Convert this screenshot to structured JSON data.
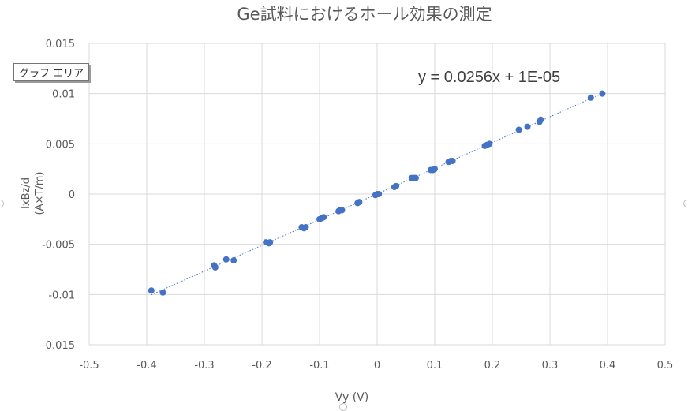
{
  "tooltip": "グラフ エリア",
  "chart_data": {
    "type": "scatter",
    "title": "Ge試料におけるホール効果の測定",
    "xlabel": "Vy (V)",
    "ylabel_lines": [
      "IxBz/d",
      "(A×T/m)"
    ],
    "xlim": [
      -0.5,
      0.5
    ],
    "ylim": [
      -0.015,
      0.015
    ],
    "x_ticks": [
      "-0.5",
      "-0.4",
      "-0.3",
      "-0.2",
      "-0.1",
      "0",
      "0.1",
      "0.2",
      "0.3",
      "0.4",
      "0.5"
    ],
    "y_ticks": [
      "0.015",
      "0.01",
      "0.005",
      "0",
      "-0.005",
      "-0.01",
      "-0.015"
    ],
    "grid": true,
    "marker_color": "#4472c4",
    "trendline": {
      "label": "y = 0.0256x + 1E-05",
      "slope": 0.0256,
      "intercept": 1e-05,
      "style": "dotted",
      "color": "#4472c4"
    },
    "points": [
      [
        -0.392,
        -0.0096
      ],
      [
        -0.372,
        -0.0098
      ],
      [
        -0.283,
        -0.0071
      ],
      [
        -0.281,
        -0.0073
      ],
      [
        -0.262,
        -0.0065
      ],
      [
        -0.249,
        -0.0066
      ],
      [
        -0.193,
        -0.0048
      ],
      [
        -0.188,
        -0.0049
      ],
      [
        -0.186,
        -0.0048
      ],
      [
        -0.131,
        -0.0033
      ],
      [
        -0.127,
        -0.0034
      ],
      [
        -0.124,
        -0.0033
      ],
      [
        -0.1,
        -0.0025
      ],
      [
        -0.096,
        -0.0024
      ],
      [
        -0.093,
        -0.0023
      ],
      [
        -0.067,
        -0.0017
      ],
      [
        -0.064,
        -0.0016
      ],
      [
        -0.061,
        -0.0016
      ],
      [
        -0.034,
        -0.0009
      ],
      [
        -0.031,
        -0.0008
      ],
      [
        -0.003,
        -0.0001
      ],
      [
        0.0,
        0.0
      ],
      [
        0.003,
        0.0
      ],
      [
        0.03,
        0.0007
      ],
      [
        0.033,
        0.0008
      ],
      [
        0.06,
        0.0016
      ],
      [
        0.064,
        0.0016
      ],
      [
        0.067,
        0.0016
      ],
      [
        0.093,
        0.0024
      ],
      [
        0.097,
        0.0024
      ],
      [
        0.1,
        0.0025
      ],
      [
        0.124,
        0.0032
      ],
      [
        0.128,
        0.0033
      ],
      [
        0.131,
        0.0033
      ],
      [
        0.187,
        0.0048
      ],
      [
        0.191,
        0.0049
      ],
      [
        0.195,
        0.005
      ],
      [
        0.246,
        0.0064
      ],
      [
        0.261,
        0.0067
      ],
      [
        0.282,
        0.0072
      ],
      [
        0.284,
        0.0074
      ],
      [
        0.371,
        0.0096
      ],
      [
        0.391,
        0.01
      ]
    ]
  }
}
